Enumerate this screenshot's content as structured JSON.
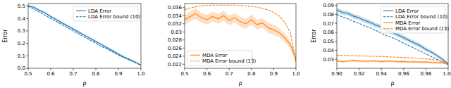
{
  "chart_data": [
    {
      "type": "line",
      "x_label": "ρ",
      "y_label": "Error",
      "x": [
        0.5,
        0.525,
        0.55,
        0.575,
        0.6,
        0.625,
        0.65,
        0.675,
        0.7,
        0.725,
        0.75,
        0.775,
        0.8,
        0.825,
        0.85,
        0.875,
        0.9,
        0.925,
        0.95,
        0.975,
        1.0
      ],
      "xlim": [
        0.5,
        1.0
      ],
      "xticks": [
        0.5,
        0.6,
        0.7,
        0.8,
        0.9,
        {
          "value": 1.0,
          "label": "1.0"
        }
      ],
      "ylim": [
        0.0,
        0.52
      ],
      "yticks": [
        {
          "value": 0.0,
          "label": "0.0"
        },
        0.1,
        0.2,
        0.3,
        0.4,
        0.5
      ],
      "legend": "upper right",
      "series": [
        {
          "name": "LDA Error",
          "color": "#1f77b4",
          "line_style": "solid",
          "values": [
            0.5,
            0.49,
            0.465,
            0.445,
            0.415,
            0.39,
            0.365,
            0.34,
            0.315,
            0.29,
            0.265,
            0.24,
            0.215,
            0.19,
            0.165,
            0.14,
            0.115,
            0.09,
            0.07,
            0.05,
            0.025
          ],
          "error": [
            0.008,
            0.01,
            0.01,
            0.01,
            0.01,
            0.01,
            0.01,
            0.01,
            0.01,
            0.01,
            0.01,
            0.01,
            0.01,
            0.01,
            0.01,
            0.01,
            0.01,
            0.008,
            0.008,
            0.006,
            0.005
          ]
        },
        {
          "name": "LDA Error bound (10)",
          "color": "#1f77b4",
          "line_style": "dashed",
          "values": [
            0.5,
            0.475,
            0.45,
            0.425,
            0.4,
            0.375,
            0.35,
            0.325,
            0.3,
            0.275,
            0.25,
            0.225,
            0.2,
            0.175,
            0.155,
            0.13,
            0.105,
            0.085,
            0.065,
            0.045,
            0.025
          ]
        }
      ]
    },
    {
      "type": "line",
      "x_label": "ρ",
      "x": [
        0.5,
        0.525,
        0.55,
        0.575,
        0.6,
        0.625,
        0.65,
        0.675,
        0.7,
        0.725,
        0.75,
        0.775,
        0.8,
        0.825,
        0.85,
        0.875,
        0.9,
        0.925,
        0.95,
        0.975,
        1.0
      ],
      "xlim": [
        0.5,
        1.0
      ],
      "xticks": [
        0.5,
        0.6,
        0.7,
        0.8,
        0.9,
        {
          "value": 1.0,
          "label": "1.0"
        }
      ],
      "ylim": [
        0.021,
        0.037
      ],
      "yticks": [
        0.022,
        0.024,
        0.026,
        0.028,
        0.03,
        0.032,
        0.034,
        0.036
      ],
      "legend": "lower left",
      "series": [
        {
          "name": "MDA Error",
          "color": "#ff7f0e",
          "line_style": "solid",
          "values": [
            0.033,
            0.0338,
            0.0345,
            0.0335,
            0.033,
            0.0338,
            0.0332,
            0.034,
            0.0328,
            0.0335,
            0.0325,
            0.032,
            0.033,
            0.0318,
            0.0322,
            0.031,
            0.0305,
            0.0298,
            0.0285,
            0.0268,
            0.0232
          ],
          "error": [
            0.0012,
            0.0012,
            0.0013,
            0.0012,
            0.0012,
            0.0012,
            0.0012,
            0.0012,
            0.0012,
            0.0012,
            0.0012,
            0.0012,
            0.0012,
            0.0012,
            0.0012,
            0.0012,
            0.0012,
            0.0011,
            0.001,
            0.001,
            0.0008
          ]
        },
        {
          "name": "MDA Error bound (13)",
          "color": "#ff7f0e",
          "line_style": "dashed",
          "values": [
            0.0355,
            0.0359,
            0.0362,
            0.0364,
            0.0365,
            0.0366,
            0.0366,
            0.0366,
            0.0366,
            0.0366,
            0.0365,
            0.0364,
            0.0363,
            0.0361,
            0.0358,
            0.0354,
            0.0348,
            0.0339,
            0.0323,
            0.0298,
            0.0225
          ]
        }
      ]
    },
    {
      "type": "line",
      "x_label": "ρ",
      "y_label": "Error",
      "x": [
        0.9,
        0.905,
        0.91,
        0.915,
        0.92,
        0.925,
        0.93,
        0.935,
        0.94,
        0.945,
        0.95,
        0.955,
        0.96,
        0.965,
        0.97,
        0.975,
        0.98,
        0.985,
        0.99,
        0.995,
        1.0
      ],
      "xlim": [
        0.9,
        1.0
      ],
      "xticks": [
        {
          "value": 0.9,
          "label": "0.90"
        },
        0.92,
        0.94,
        0.96,
        0.98,
        {
          "value": 1.0,
          "label": "1.00"
        }
      ],
      "ylim": [
        0.02,
        0.092
      ],
      "yticks": [
        0.03,
        0.04,
        0.05,
        0.06,
        0.07,
        0.08,
        0.09
      ],
      "legend": "upper right",
      "series": [
        {
          "name": "LDA Error",
          "color": "#1f77b4",
          "line_style": "solid",
          "values": [
            0.085,
            0.082,
            0.081,
            0.078,
            0.076,
            0.073,
            0.071,
            0.068,
            0.066,
            0.062,
            0.06,
            0.057,
            0.054,
            0.051,
            0.048,
            0.045,
            0.041,
            0.038,
            0.034,
            0.03,
            0.025
          ],
          "error": [
            0.0025,
            0.0025,
            0.0025,
            0.0025,
            0.0025,
            0.0025,
            0.0025,
            0.0025,
            0.0025,
            0.0025,
            0.0025,
            0.0025,
            0.0025,
            0.0025,
            0.0025,
            0.0025,
            0.0022,
            0.002,
            0.002,
            0.0018,
            0.0015
          ]
        },
        {
          "name": "LDA Error bound (10)",
          "color": "#1f77b4",
          "line_style": "dashed",
          "values": [
            0.08,
            0.077,
            0.075,
            0.072,
            0.07,
            0.067,
            0.065,
            0.062,
            0.059,
            0.056,
            0.054,
            0.051,
            0.048,
            0.045,
            0.042,
            0.039,
            0.036,
            0.033,
            0.03,
            0.027,
            0.024
          ]
        },
        {
          "name": "MDA Error",
          "color": "#ff7f0e",
          "line_style": "solid",
          "values": [
            0.028,
            0.0275,
            0.028,
            0.0285,
            0.028,
            0.0278,
            0.028,
            0.0282,
            0.0275,
            0.028,
            0.0278,
            0.0272,
            0.0275,
            0.027,
            0.0272,
            0.0268,
            0.027,
            0.0265,
            0.0262,
            0.026,
            0.0245
          ],
          "error": [
            0.0012,
            0.0012,
            0.0012,
            0.0012,
            0.0012,
            0.0012,
            0.0012,
            0.0012,
            0.0012,
            0.0012,
            0.0012,
            0.0012,
            0.0012,
            0.0012,
            0.0012,
            0.0012,
            0.0012,
            0.0012,
            0.0012,
            0.001,
            0.0008
          ]
        },
        {
          "name": "MDA Error bound (13)",
          "color": "#ff7f0e",
          "line_style": "dashed",
          "values": [
            0.0345,
            0.0343,
            0.0342,
            0.034,
            0.0338,
            0.0336,
            0.0334,
            0.0332,
            0.033,
            0.0328,
            0.0325,
            0.0322,
            0.032,
            0.0317,
            0.0313,
            0.031,
            0.0305,
            0.0298,
            0.029,
            0.0278,
            0.0245
          ]
        }
      ]
    }
  ]
}
